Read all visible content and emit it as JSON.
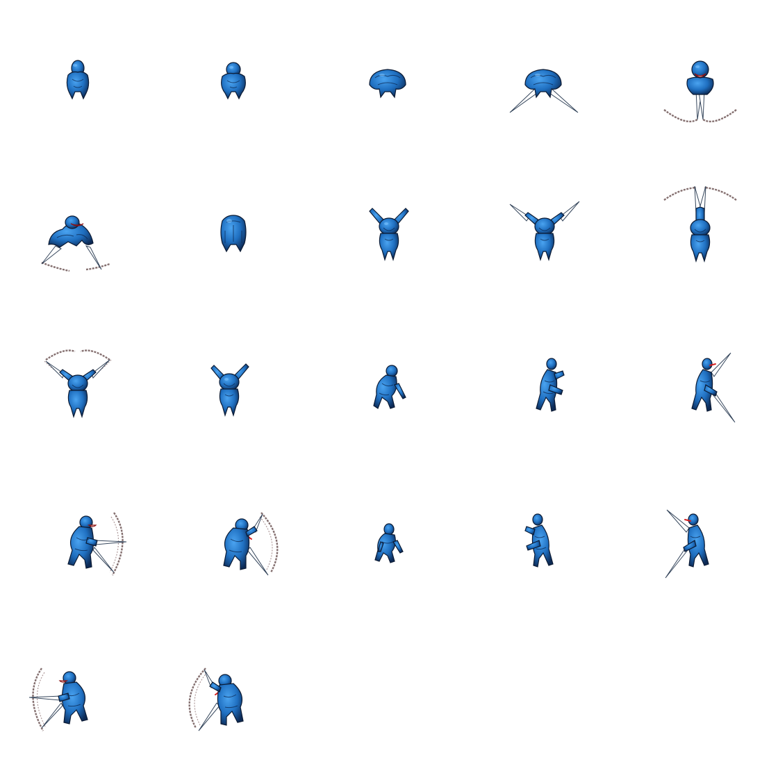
{
  "sheet": {
    "background": "#ffffff",
    "sprite_color": "#1f6fc0",
    "sprite_dark": "#0d2a55",
    "effect_color": "#6f5656",
    "frame_count": 22,
    "frames": [
      {
        "pose": "crouch-front",
        "effect": "none"
      },
      {
        "pose": "crouch-front-2",
        "effect": "none"
      },
      {
        "pose": "hunch-back",
        "effect": "none"
      },
      {
        "pose": "hunch-back-blades",
        "effect": "blades-down"
      },
      {
        "pose": "front-mouth-open",
        "effect": "arc-slash-down"
      },
      {
        "pose": "low-crouch-mouth",
        "effect": "arc-slash-down-wide"
      },
      {
        "pose": "hunch-cloak",
        "effect": "none"
      },
      {
        "pose": "arms-raised",
        "effect": "none"
      },
      {
        "pose": "arms-raised-blades",
        "effect": "blades-up"
      },
      {
        "pose": "arms-up-together",
        "effect": "arc-slash-up"
      },
      {
        "pose": "arms-raised-arc",
        "effect": "arc-slash-up-wide"
      },
      {
        "pose": "arms-raised",
        "effect": "none"
      },
      {
        "pose": "side-crouch",
        "effect": "none"
      },
      {
        "pose": "side-claws",
        "effect": "none"
      },
      {
        "pose": "side-claws-blades",
        "effect": "blade-diagonal"
      },
      {
        "pose": "side-lunge-arc",
        "effect": "arc-slash-right"
      },
      {
        "pose": "side-slash-arc",
        "effect": "arc-slash-right-tongue"
      },
      {
        "pose": "side-crouch",
        "effect": "none"
      },
      {
        "pose": "side-claws",
        "effect": "none"
      },
      {
        "pose": "side-claws-blades",
        "effect": "blade-diagonal"
      },
      {
        "pose": "side-lunge-arc-left",
        "effect": "arc-slash-left"
      },
      {
        "pose": "side-slash-arc-left",
        "effect": "arc-slash-left-tongue"
      }
    ]
  }
}
